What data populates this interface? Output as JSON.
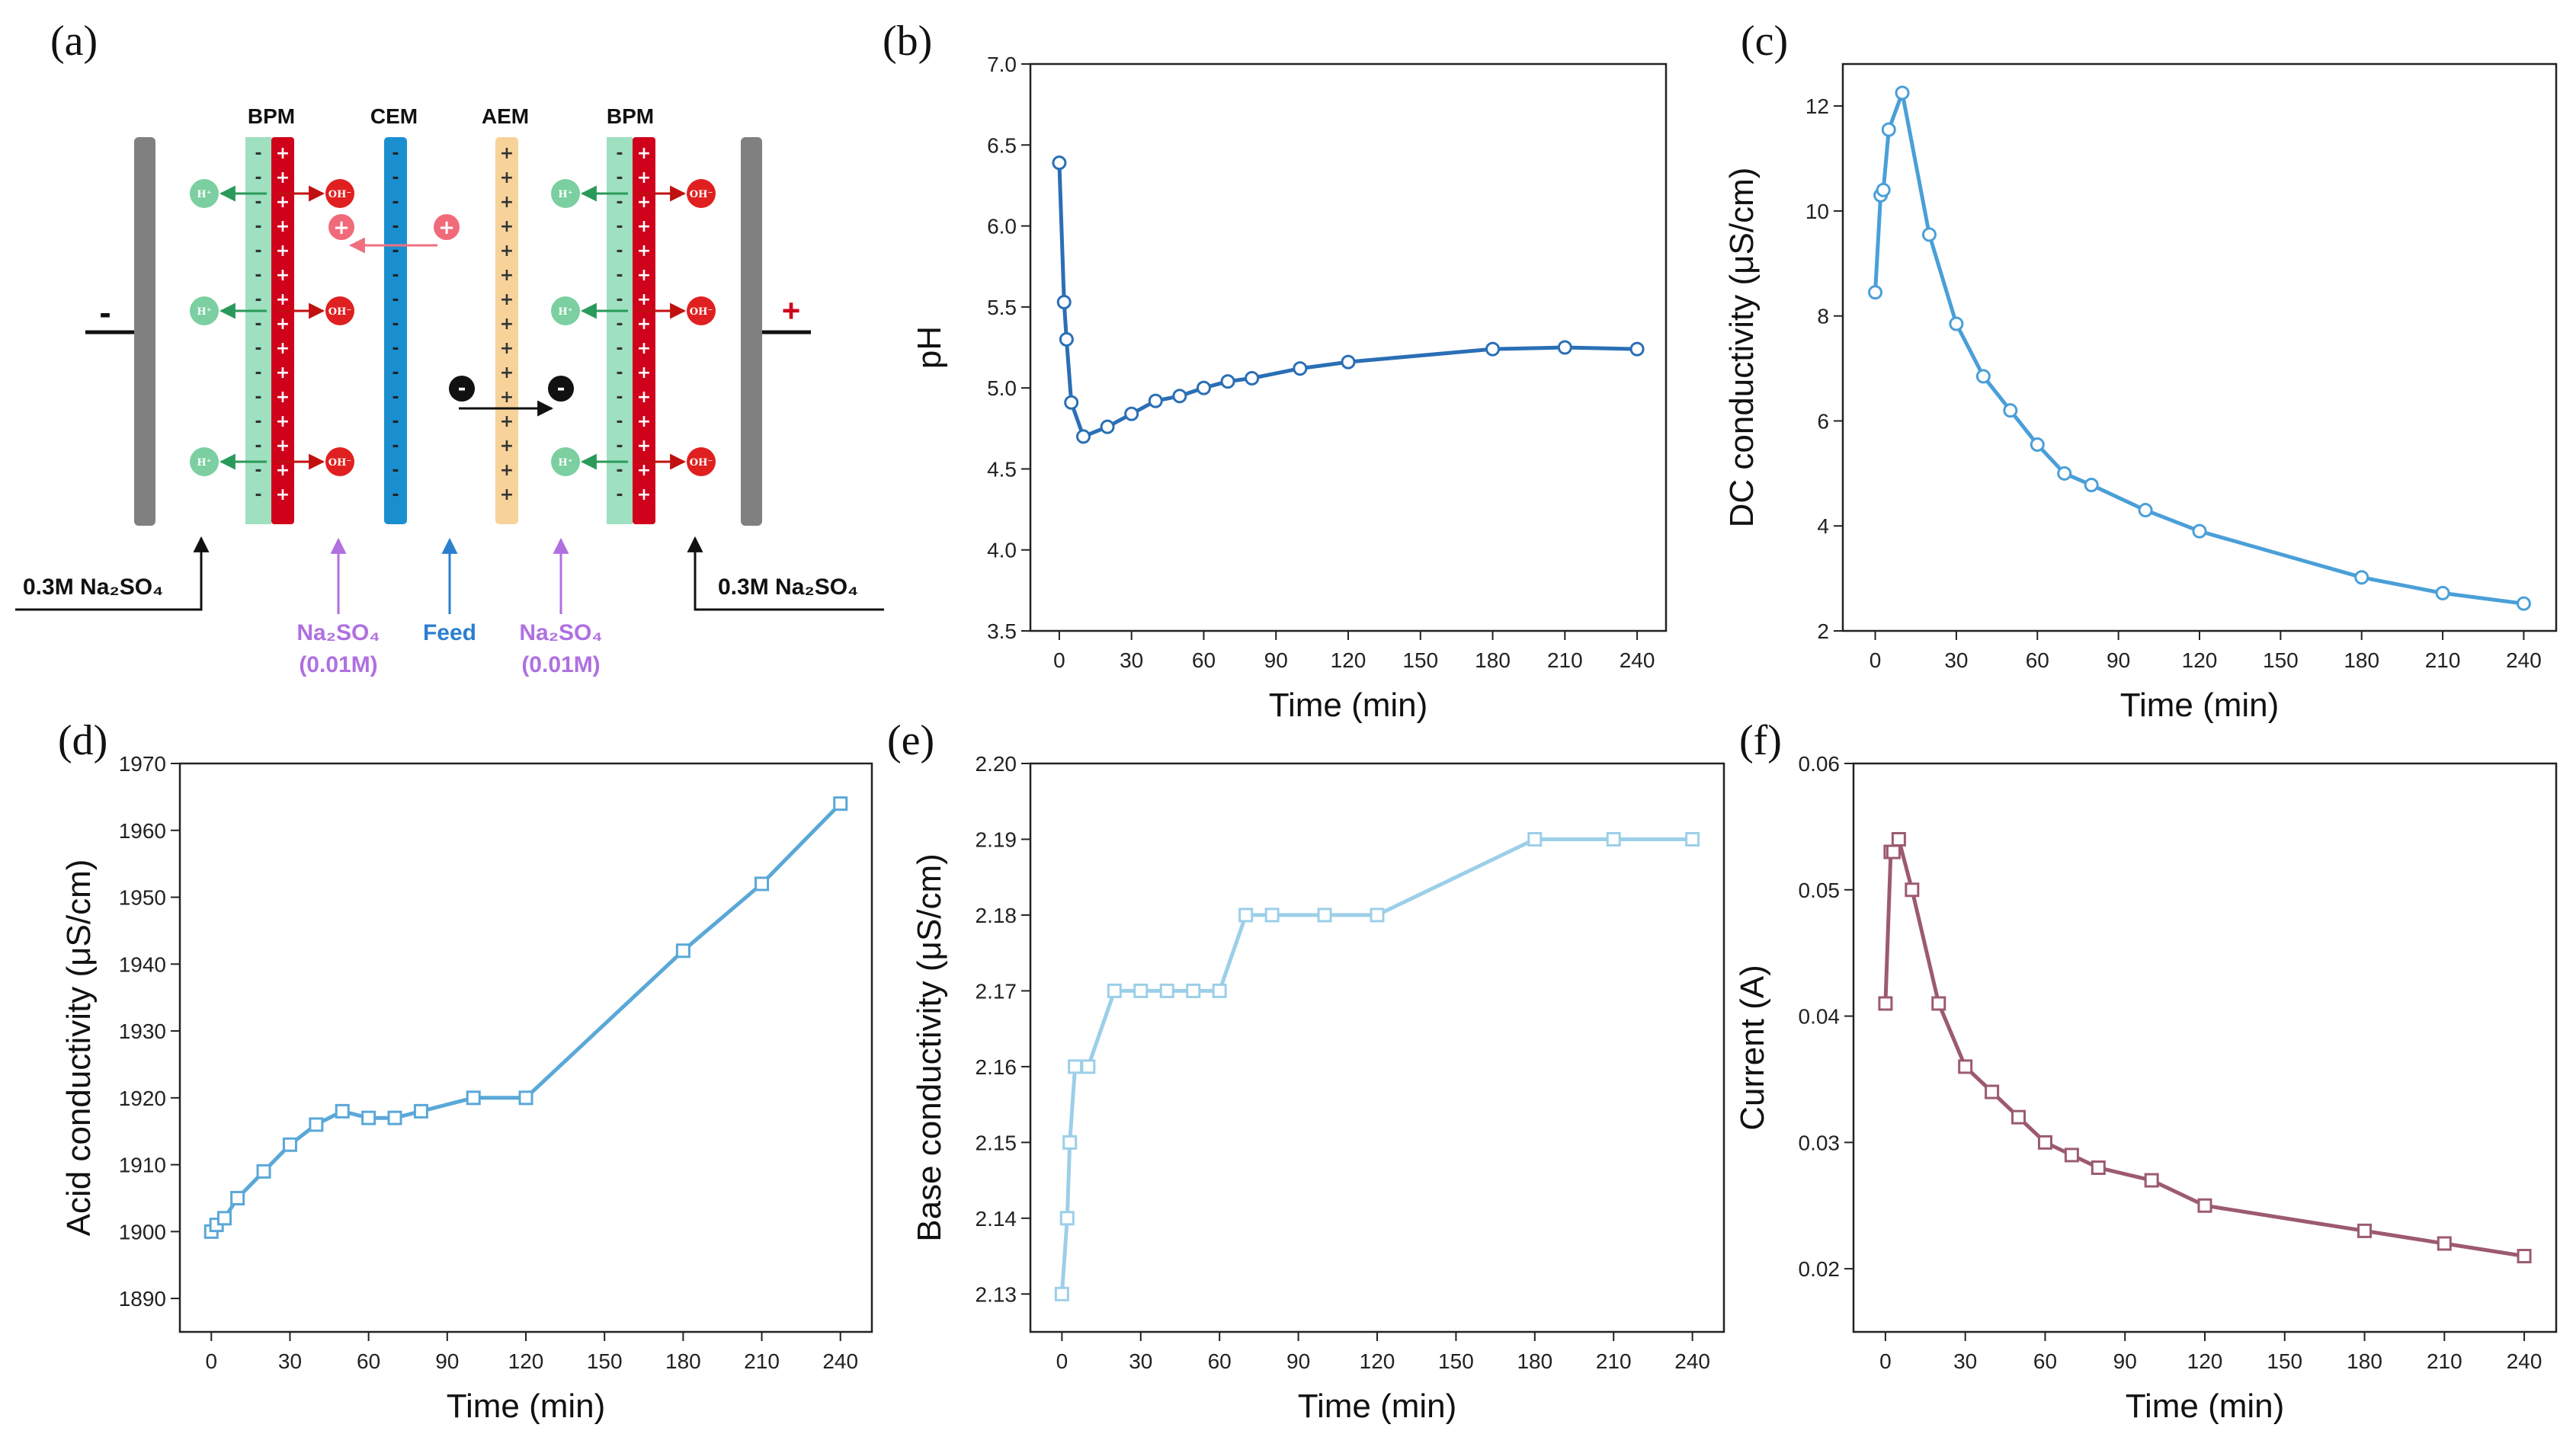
{
  "diagram": {
    "panel_label": "(a)",
    "membranes": [
      "BPM",
      "CEM",
      "AEM",
      "BPM"
    ],
    "electrode_left_sign": "-",
    "electrode_right_sign": "+",
    "ion_h": "H⁺",
    "ion_oh": "OH⁻",
    "left_inlet": "0.3M Na₂SO₄",
    "right_inlet": "0.3M Na₂SO₄",
    "inlet_salt_left": "Na₂SO₄",
    "inlet_salt_left_conc": "(0.01M)",
    "inlet_feed": "Feed",
    "inlet_salt_right": "Na₂SO₄",
    "inlet_salt_right_conc": "(0.01M)",
    "colors": {
      "bpm_green": "#9ee0c0",
      "bpm_red": "#d0021b",
      "cem": "#1a8fd0",
      "aem": "#f7d39a",
      "electrode": "#808080",
      "h_ion": "#7bcfa0",
      "oh_ion": "#e02020",
      "salt_text": "#b070e0",
      "feed_text": "#2b7fd0",
      "cation": "#f06a7a"
    }
  },
  "chart_data": [
    {
      "panel": "(b)",
      "type": "line",
      "marker": "circle",
      "color": "#2a6fb5",
      "x": [
        0,
        2,
        3,
        5,
        10,
        20,
        30,
        40,
        50,
        60,
        70,
        80,
        100,
        120,
        180,
        210,
        240
      ],
      "y": [
        6.39,
        5.53,
        5.3,
        4.91,
        4.7,
        4.76,
        4.84,
        4.92,
        4.95,
        5.0,
        5.04,
        5.06,
        5.12,
        5.16,
        5.24,
        5.25,
        5.24
      ],
      "xlabel": "Time (min)",
      "ylabel": "pH",
      "xlim": [
        -12,
        252
      ],
      "ylim": [
        3.5,
        7.0
      ],
      "xticks": [
        0,
        30,
        60,
        90,
        120,
        150,
        180,
        210,
        240
      ],
      "yticks": [
        "3.5",
        "4.0",
        "4.5",
        "5.0",
        "5.5",
        "6.0",
        "6.5",
        "7.0"
      ]
    },
    {
      "panel": "(c)",
      "type": "line",
      "marker": "circle",
      "color": "#4a9fd8",
      "x": [
        0,
        2,
        3,
        5,
        10,
        20,
        30,
        40,
        50,
        60,
        70,
        80,
        100,
        120,
        180,
        210,
        240
      ],
      "y": [
        8.45,
        10.3,
        10.4,
        11.55,
        12.25,
        9.55,
        7.85,
        6.85,
        6.2,
        5.55,
        5.0,
        4.78,
        4.3,
        3.9,
        3.02,
        2.72,
        2.52
      ],
      "xlabel": "Time (min)",
      "ylabel": "DC conductivity (μS/cm)",
      "xlim": [
        -12,
        252
      ],
      "ylim": [
        2,
        12.8
      ],
      "xticks": [
        0,
        30,
        60,
        90,
        120,
        150,
        180,
        210,
        240
      ],
      "yticks": [
        "2",
        "4",
        "6",
        "8",
        "10",
        "12"
      ]
    },
    {
      "panel": "(d)",
      "type": "line",
      "marker": "square",
      "color": "#5aa8d8",
      "x": [
        0,
        2,
        5,
        10,
        20,
        30,
        40,
        50,
        60,
        70,
        80,
        100,
        120,
        180,
        210,
        240
      ],
      "y": [
        1900,
        1901,
        1902,
        1905,
        1909,
        1913,
        1916,
        1918,
        1917,
        1917,
        1918,
        1920,
        1920,
        1942,
        1952,
        1964
      ],
      "xlabel": "Time (min)",
      "ylabel": "Acid conductivity (μS/cm)",
      "xlim": [
        -12,
        252
      ],
      "ylim": [
        1885,
        1970
      ],
      "xticks": [
        0,
        30,
        60,
        90,
        120,
        150,
        180,
        210,
        240
      ],
      "yticks": [
        "1890",
        "1900",
        "1910",
        "1920",
        "1930",
        "1940",
        "1950",
        "1960",
        "1970"
      ]
    },
    {
      "panel": "(e)",
      "type": "line",
      "marker": "square",
      "color": "#9ccfe8",
      "x": [
        0,
        2,
        3,
        5,
        10,
        20,
        30,
        40,
        50,
        60,
        70,
        80,
        100,
        120,
        180,
        210,
        240
      ],
      "y": [
        2.13,
        2.14,
        2.15,
        2.16,
        2.16,
        2.17,
        2.17,
        2.17,
        2.17,
        2.17,
        2.18,
        2.18,
        2.18,
        2.18,
        2.19,
        2.19,
        2.19
      ],
      "xlabel": "Time (min)",
      "ylabel": "Base conductivity (μS/cm)",
      "xlim": [
        -12,
        252
      ],
      "ylim": [
        2.125,
        2.2
      ],
      "xticks": [
        0,
        30,
        60,
        90,
        120,
        150,
        180,
        210,
        240
      ],
      "yticks": [
        "2.13",
        "2.14",
        "2.15",
        "2.16",
        "2.17",
        "2.18",
        "2.19",
        "2.20"
      ]
    },
    {
      "panel": "(f)",
      "type": "line",
      "marker": "square",
      "color": "#9c5a72",
      "x": [
        0,
        2,
        3,
        5,
        10,
        20,
        30,
        40,
        50,
        60,
        70,
        80,
        100,
        120,
        180,
        210,
        240
      ],
      "y": [
        0.041,
        0.053,
        0.053,
        0.054,
        0.05,
        0.041,
        0.036,
        0.034,
        0.032,
        0.03,
        0.029,
        0.028,
        0.027,
        0.025,
        0.023,
        0.022,
        0.021
      ],
      "xlabel": "Time (min)",
      "ylabel": "Current (A)",
      "xlim": [
        -12,
        252
      ],
      "ylim": [
        0.015,
        0.06
      ],
      "xticks": [
        0,
        30,
        60,
        90,
        120,
        150,
        180,
        210,
        240
      ],
      "yticks": [
        "0.02",
        "0.03",
        "0.04",
        "0.05",
        "0.06"
      ]
    }
  ]
}
